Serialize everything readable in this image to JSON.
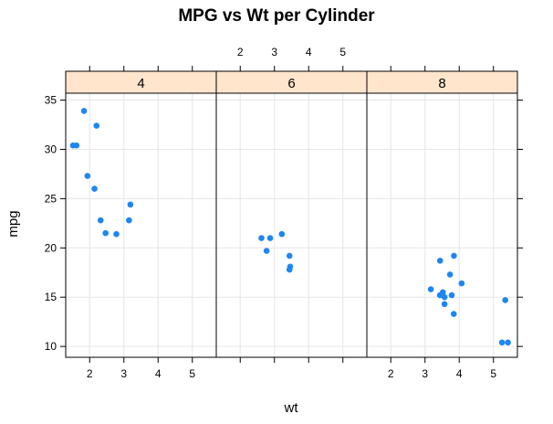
{
  "chart_data": {
    "type": "scatter",
    "title": "MPG vs Wt per Cylinder",
    "xlabel": "wt",
    "ylabel": "mpg",
    "xlim": [
      1.3,
      5.7
    ],
    "ylim": [
      8.9,
      35.7
    ],
    "xticks": [
      2,
      3,
      4,
      5
    ],
    "yticks": [
      10,
      15,
      20,
      25,
      30,
      35
    ],
    "grid": true,
    "point_color": "#1E86F2",
    "strip_color": "#FFE5CC",
    "panels": [
      {
        "label": "4",
        "x": [
          2.32,
          3.19,
          3.15,
          2.2,
          1.615,
          1.835,
          2.465,
          1.935,
          2.14,
          1.513,
          2.78
        ],
        "y": [
          22.8,
          24.4,
          22.8,
          32.4,
          30.4,
          33.9,
          21.5,
          27.3,
          26.0,
          30.4,
          21.4
        ]
      },
      {
        "label": "6",
        "x": [
          2.62,
          2.875,
          3.215,
          3.46,
          3.44,
          3.44,
          2.77
        ],
        "y": [
          21.0,
          21.0,
          21.4,
          18.1,
          19.2,
          17.8,
          19.7
        ]
      },
      {
        "label": "8",
        "x": [
          3.44,
          3.57,
          4.07,
          3.73,
          3.78,
          5.25,
          5.424,
          5.345,
          3.52,
          3.435,
          3.84,
          3.845,
          3.17,
          3.57
        ],
        "y": [
          18.7,
          14.3,
          16.4,
          17.3,
          15.2,
          10.4,
          10.4,
          14.7,
          15.5,
          15.2,
          13.3,
          19.2,
          15.8,
          15.0
        ]
      }
    ]
  }
}
